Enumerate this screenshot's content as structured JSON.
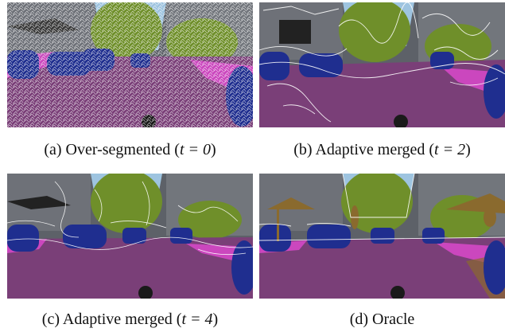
{
  "figure": {
    "panels": [
      {
        "id": "a",
        "caption_prefix": "(a) Over-segmented (",
        "caption_math": "t = 0",
        "caption_suffix": ")",
        "overlay": "over-segmented",
        "boundary_density": "very-high"
      },
      {
        "id": "b",
        "caption_prefix": "(b) Adaptive merged (",
        "caption_math": "t = 2",
        "caption_suffix": ")",
        "overlay": "adaptive-merged",
        "boundary_density": "high"
      },
      {
        "id": "c",
        "caption_prefix": "(c) Adaptive merged (",
        "caption_math": "t = 4",
        "caption_suffix": ")",
        "overlay": "adaptive-merged",
        "boundary_density": "medium"
      },
      {
        "id": "d",
        "caption_prefix": "(d) Oracle",
        "caption_math": "",
        "caption_suffix": "",
        "overlay": "oracle",
        "boundary_density": "low"
      }
    ],
    "colors": {
      "road": "#7a3f78",
      "sidewalk": "#e04ad0",
      "car": "#1f2e8f",
      "vegetation": "#6f8f2a",
      "building": "#7b7f86",
      "sky": "#9ec4e0",
      "canopy": "#8a6a2e",
      "boundary": "#ffffff"
    }
  }
}
